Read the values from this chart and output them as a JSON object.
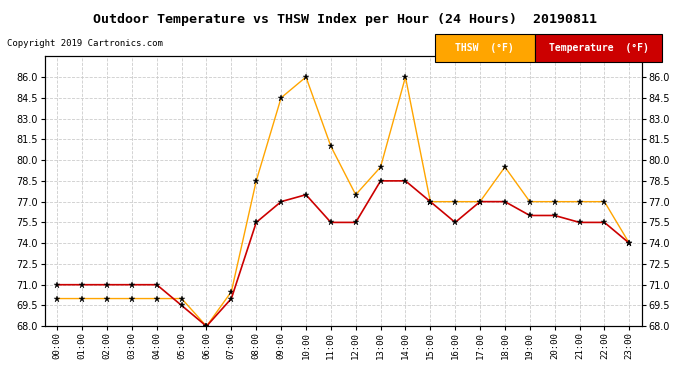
{
  "title": "Outdoor Temperature vs THSW Index per Hour (24 Hours)  20190811",
  "copyright": "Copyright 2019 Cartronics.com",
  "hours": [
    "00:00",
    "01:00",
    "02:00",
    "03:00",
    "04:00",
    "05:00",
    "06:00",
    "07:00",
    "08:00",
    "09:00",
    "10:00",
    "11:00",
    "12:00",
    "13:00",
    "14:00",
    "15:00",
    "16:00",
    "17:00",
    "18:00",
    "19:00",
    "20:00",
    "21:00",
    "22:00",
    "23:00"
  ],
  "thsw": [
    70.0,
    70.0,
    70.0,
    70.0,
    70.0,
    70.0,
    68.0,
    70.5,
    78.5,
    84.5,
    86.0,
    81.0,
    77.5,
    79.5,
    86.0,
    77.0,
    77.0,
    77.0,
    79.5,
    77.0,
    77.0,
    77.0,
    77.0,
    74.0
  ],
  "temp": [
    71.0,
    71.0,
    71.0,
    71.0,
    71.0,
    69.5,
    68.0,
    70.0,
    75.5,
    77.0,
    77.5,
    75.5,
    75.5,
    78.5,
    78.5,
    77.0,
    75.5,
    77.0,
    77.0,
    76.0,
    76.0,
    75.5,
    75.5,
    74.0
  ],
  "thsw_color": "#FFA500",
  "temp_color": "#CC0000",
  "ylim_min": 68.0,
  "ylim_max": 87.5,
  "yticks": [
    68.0,
    69.5,
    71.0,
    72.5,
    74.0,
    75.5,
    77.0,
    78.5,
    80.0,
    81.5,
    83.0,
    84.5,
    86.0
  ],
  "background_color": "#ffffff",
  "grid_color": "#cccccc",
  "legend_thsw_bg": "#FFA500",
  "legend_temp_bg": "#CC0000",
  "legend_thsw_label": "THSW  (°F)",
  "legend_temp_label": "Temperature  (°F)"
}
